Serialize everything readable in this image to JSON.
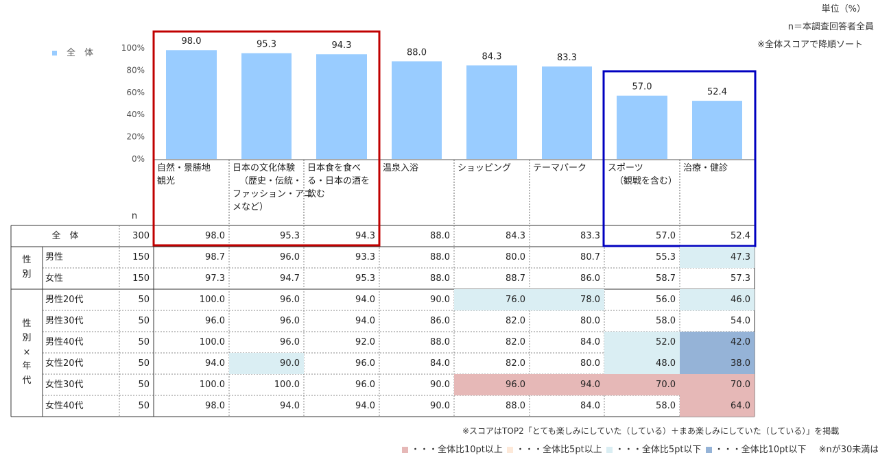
{
  "notes": {
    "unit": "単位（%）",
    "n_note": "n＝本調査回答者全員",
    "sort_note": "※全体スコアで降順ソート",
    "score_note": "※スコアはTOP2「とても楽しみにしていた（している）＋まあ楽しみにしていた（している）」を掲載",
    "ref_note": "※nが30未満は参考値"
  },
  "legend": {
    "series_label": "全　体",
    "high10": "・・・全体比10pt以上",
    "high5": "・・・全体比5pt以上",
    "low5": "・・・全体比5pt以下",
    "low10": "・・・全体比10pt以下"
  },
  "colors": {
    "bar": "#99CCFF",
    "high10": "#E6B8B7",
    "high5": "#FDE9D9",
    "low5": "#DAEEF3",
    "low10": "#95B3D7",
    "red_frame": "#C00000",
    "blue_frame": "#0000C0"
  },
  "table": {
    "n_header": "n",
    "row_groups": {
      "gender": "性別",
      "gender_age": "性別×年代"
    }
  },
  "chart_data": {
    "type": "bar",
    "title": "",
    "ylim": [
      0,
      100
    ],
    "yticks": [
      "0%",
      "20%",
      "40%",
      "60%",
      "80%",
      "100%"
    ],
    "grid": false,
    "legend_position": "top-left",
    "categories": [
      [
        "自然・景勝地",
        "観光"
      ],
      [
        "日本の文化体験",
        "（歴史・伝統・",
        "ファッション・アニ",
        "メなど）"
      ],
      [
        "日本食を食べ",
        "る・日本の酒を",
        "飲む"
      ],
      [
        "温泉入浴"
      ],
      [
        "ショッピング"
      ],
      [
        "テーマパーク"
      ],
      [
        "スポーツ",
        "（観戦を含む）"
      ],
      [
        "治療・健診"
      ]
    ],
    "series": [
      {
        "name": "全　体",
        "values": [
          98.0,
          95.3,
          94.3,
          88.0,
          84.3,
          83.3,
          57.0,
          52.4
        ]
      }
    ],
    "data_labels": [
      "98.0",
      "95.3",
      "94.3",
      "88.0",
      "84.3",
      "83.3",
      "57.0",
      "52.4"
    ],
    "rows": [
      {
        "label": "全　体",
        "group": "",
        "n": "300",
        "values": [
          "98.0",
          "95.3",
          "94.3",
          "88.0",
          "84.3",
          "83.3",
          "57.0",
          "52.4"
        ],
        "marks": [
          "",
          "",
          "",
          "",
          "",
          "",
          "",
          ""
        ]
      },
      {
        "label": "男性",
        "group": "gender",
        "n": "150",
        "values": [
          "98.7",
          "96.0",
          "93.3",
          "88.0",
          "80.0",
          "80.7",
          "55.3",
          "47.3"
        ],
        "marks": [
          "",
          "",
          "",
          "",
          "",
          "",
          "",
          "low5"
        ]
      },
      {
        "label": "女性",
        "group": "gender",
        "n": "150",
        "values": [
          "97.3",
          "94.7",
          "95.3",
          "88.0",
          "88.7",
          "86.0",
          "58.7",
          "57.3"
        ],
        "marks": [
          "",
          "",
          "",
          "",
          "",
          "",
          "",
          ""
        ]
      },
      {
        "label": "男性20代",
        "group": "gender_age",
        "n": "50",
        "values": [
          "100.0",
          "96.0",
          "94.0",
          "90.0",
          "76.0",
          "78.0",
          "56.0",
          "46.0"
        ],
        "marks": [
          "",
          "",
          "",
          "",
          "low5",
          "low5",
          "",
          "low5"
        ]
      },
      {
        "label": "男性30代",
        "group": "gender_age",
        "n": "50",
        "values": [
          "96.0",
          "96.0",
          "94.0",
          "86.0",
          "82.0",
          "80.0",
          "58.0",
          "54.0"
        ],
        "marks": [
          "",
          "",
          "",
          "",
          "",
          "",
          "",
          ""
        ]
      },
      {
        "label": "男性40代",
        "group": "gender_age",
        "n": "50",
        "values": [
          "100.0",
          "96.0",
          "92.0",
          "88.0",
          "82.0",
          "84.0",
          "52.0",
          "42.0"
        ],
        "marks": [
          "",
          "",
          "",
          "",
          "",
          "",
          "low5",
          "low10"
        ]
      },
      {
        "label": "女性20代",
        "group": "gender_age",
        "n": "50",
        "values": [
          "94.0",
          "90.0",
          "96.0",
          "84.0",
          "82.0",
          "80.0",
          "48.0",
          "38.0"
        ],
        "marks": [
          "",
          "low5",
          "",
          "",
          "",
          "",
          "low5",
          "low10"
        ]
      },
      {
        "label": "女性30代",
        "group": "gender_age",
        "n": "50",
        "values": [
          "100.0",
          "100.0",
          "96.0",
          "90.0",
          "96.0",
          "94.0",
          "70.0",
          "70.0"
        ],
        "marks": [
          "",
          "",
          "",
          "",
          "high10",
          "high10",
          "high10",
          "high10"
        ]
      },
      {
        "label": "女性40代",
        "group": "gender_age",
        "n": "50",
        "values": [
          "98.0",
          "94.0",
          "94.0",
          "90.0",
          "88.0",
          "84.0",
          "58.0",
          "64.0"
        ],
        "marks": [
          "",
          "",
          "",
          "",
          "",
          "",
          "",
          "high10"
        ]
      }
    ]
  }
}
